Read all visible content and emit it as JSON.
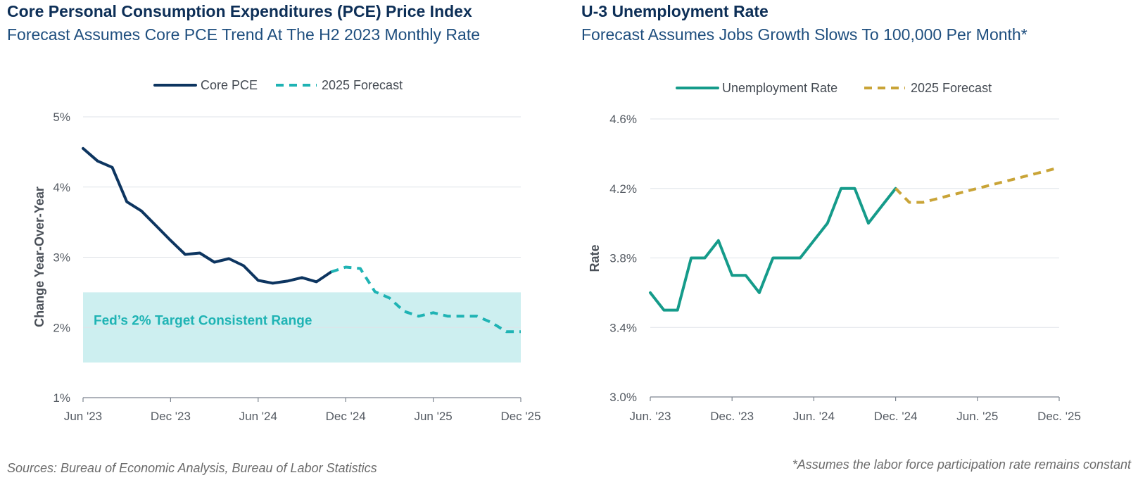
{
  "footer": {
    "sources": "Sources: Bureau of Economic Analysis, Bureau of Labor Statistics",
    "note": "*Assumes the labor force participation rate remains constant"
  },
  "chart_data": [
    {
      "type": "line",
      "title": "Core Personal Consumption Expenditures (PCE) Price Index",
      "subtitle": "Forecast Assumes Core PCE Trend At The H2 2023 Monthly Rate",
      "ylabel": "Change Year-Over-Year",
      "xlabel": "",
      "ylim": [
        1,
        5
      ],
      "xlim": [
        "2023-06",
        "2025-12"
      ],
      "yticks": [
        1,
        2,
        3,
        4,
        5
      ],
      "ytick_labels": [
        "1%",
        "2%",
        "3%",
        "4%",
        "5%"
      ],
      "xticks": [
        "2023-06",
        "2023-12",
        "2024-06",
        "2024-12",
        "2025-06",
        "2025-12"
      ],
      "xtick_labels": [
        "Jun '23",
        "Dec '23",
        "Jun '24",
        "Dec '24",
        "Jun '25",
        "Dec '25"
      ],
      "grid": true,
      "legend": "top-center",
      "band": {
        "label": "Fed’s 2% Target Consistent Range",
        "y0": 1.5,
        "y1": 2.5,
        "x0": "2023-06",
        "x1": "2025-12",
        "color": "#cdeff0",
        "label_color": "#1fb3b4"
      },
      "series": [
        {
          "name": "Core PCE",
          "style": "solid",
          "color": "#0d3560",
          "x": [
            "2023-06",
            "2023-07",
            "2023-08",
            "2023-09",
            "2023-10",
            "2023-11",
            "2023-12",
            "2024-01",
            "2024-02",
            "2024-03",
            "2024-04",
            "2024-05",
            "2024-06",
            "2024-07",
            "2024-08",
            "2024-09",
            "2024-10",
            "2024-11"
          ],
          "values": [
            4.55,
            4.37,
            4.28,
            3.79,
            3.66,
            3.45,
            3.24,
            3.04,
            3.06,
            2.93,
            2.98,
            2.88,
            2.67,
            2.63,
            2.66,
            2.71,
            2.65,
            2.79
          ]
        },
        {
          "name": "2025 Forecast",
          "style": "dashed",
          "color": "#1fb3b4",
          "x": [
            "2024-11",
            "2024-12",
            "2025-01",
            "2025-02",
            "2025-03",
            "2025-04",
            "2025-05",
            "2025-06",
            "2025-07",
            "2025-08",
            "2025-09",
            "2025-10",
            "2025-11",
            "2025-12"
          ],
          "values": [
            2.79,
            2.86,
            2.84,
            2.51,
            2.42,
            2.23,
            2.16,
            2.21,
            2.16,
            2.16,
            2.16,
            2.07,
            1.94,
            1.94
          ]
        }
      ]
    },
    {
      "type": "line",
      "title": "U-3 Unemployment Rate",
      "subtitle": "Forecast Assumes Jobs Growth Slows To 100,000 Per Month*",
      "ylabel": "Rate",
      "xlabel": "",
      "ylim": [
        3.0,
        4.6
      ],
      "xlim": [
        "2023-06",
        "2025-12"
      ],
      "yticks": [
        3.0,
        3.4,
        3.8,
        4.2,
        4.6
      ],
      "ytick_labels": [
        "3.0%",
        "3.4%",
        "3.8%",
        "4.2%",
        "4.6%"
      ],
      "xticks": [
        "2023-06",
        "2023-12",
        "2024-06",
        "2024-12",
        "2025-06",
        "2025-12"
      ],
      "xtick_labels": [
        "Jun. '23",
        "Dec. '23",
        "Jun. '24",
        "Dec. '24",
        "Jun. '25",
        "Dec. '25"
      ],
      "grid": true,
      "legend": "top-center",
      "series": [
        {
          "name": "Unemployment Rate",
          "style": "solid",
          "color": "#159b8a",
          "x": [
            "2023-06",
            "2023-07",
            "2023-08",
            "2023-09",
            "2023-10",
            "2023-11",
            "2023-12",
            "2024-01",
            "2024-02",
            "2024-03",
            "2024-04",
            "2024-05",
            "2024-06",
            "2024-07",
            "2024-08",
            "2024-09",
            "2024-10",
            "2024-11",
            "2024-12"
          ],
          "values": [
            3.6,
            3.5,
            3.5,
            3.8,
            3.8,
            3.9,
            3.7,
            3.7,
            3.6,
            3.8,
            3.8,
            3.8,
            3.9,
            4.0,
            4.2,
            4.2,
            4.0,
            4.1,
            4.2
          ]
        },
        {
          "name": "2025 Forecast",
          "style": "dashed",
          "color": "#c9a437",
          "x": [
            "2024-12",
            "2025-01",
            "2025-02",
            "2025-03",
            "2025-04",
            "2025-05",
            "2025-06",
            "2025-07",
            "2025-08",
            "2025-09",
            "2025-10",
            "2025-11",
            "2025-12"
          ],
          "values": [
            4.2,
            4.12,
            4.12,
            4.14,
            4.16,
            4.18,
            4.2,
            4.22,
            4.24,
            4.26,
            4.28,
            4.3,
            4.32
          ]
        }
      ]
    }
  ]
}
